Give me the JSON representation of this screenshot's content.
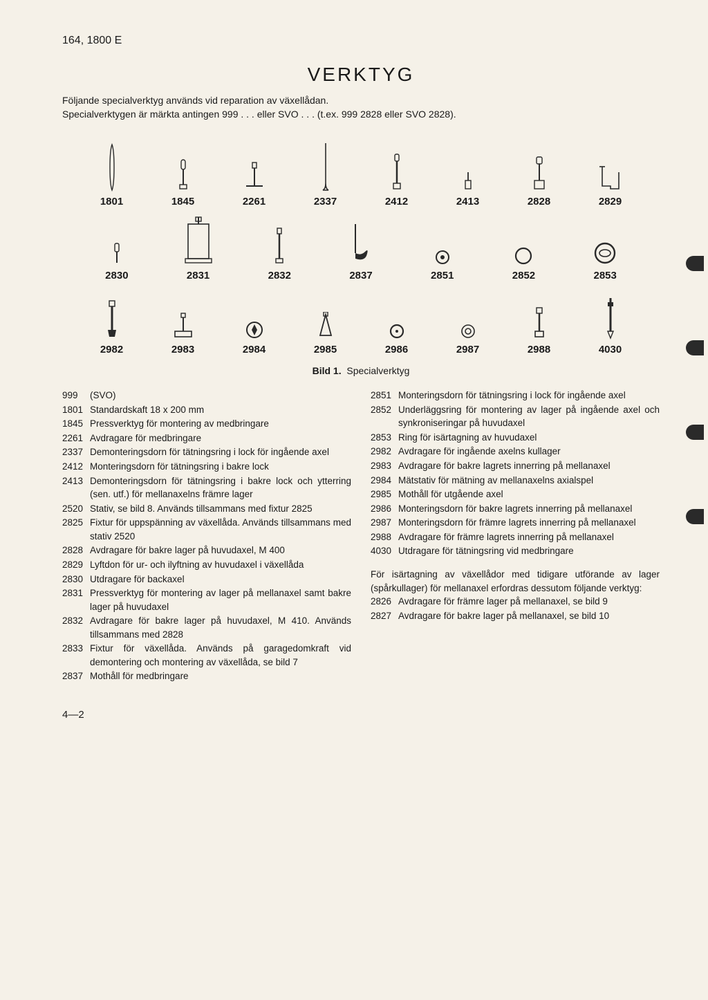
{
  "header": "164, 1800 E",
  "title": "VERKTYG",
  "intro_line1": "Följande specialverktyg används vid reparation av växellådan.",
  "intro_line2": "Specialverktygen är märkta antingen 999 . . . eller SVO . . . (t.ex. 999 2828 eller SVO 2828).",
  "caption_bold": "Bild 1.",
  "caption_text": "Specialverktyg",
  "tool_rows": [
    [
      "1801",
      "1845",
      "2261",
      "2337",
      "2412",
      "2413",
      "2828",
      "2829"
    ],
    [
      "2830",
      "2831",
      "2832",
      "2837",
      "2851",
      "2852",
      "2853"
    ],
    [
      "2982",
      "2983",
      "2984",
      "2985",
      "2986",
      "2987",
      "2988",
      "4030"
    ]
  ],
  "left_col": [
    {
      "num": "999",
      "desc": "(SVO)"
    },
    {
      "num": "1801",
      "desc": "Standardskaft 18 x 200 mm"
    },
    {
      "num": "1845",
      "desc": "Pressverktyg för montering av medbringare"
    },
    {
      "num": "2261",
      "desc": "Avdragare för medbringare"
    },
    {
      "num": "2337",
      "desc": "Demonteringsdorn för tätningsring i lock för ingående axel"
    },
    {
      "num": "2412",
      "desc": "Monteringsdorn för tätningsring i bakre lock"
    },
    {
      "num": "2413",
      "desc": "Demonteringsdorn för tätningsring i bakre lock och ytterring (sen. utf.) för mellanaxelns främre lager"
    },
    {
      "num": "2520",
      "desc": "Stativ, se bild 8. Används tillsammans med fixtur 2825"
    },
    {
      "num": "2825",
      "desc": "Fixtur för uppspänning av växellåda. Används tillsammans med stativ 2520"
    },
    {
      "num": "2828",
      "desc": "Avdragare för bakre lager på huvudaxel, M 400"
    },
    {
      "num": "2829",
      "desc": "Lyftdon för ur- och ilyftning av huvudaxel i växellåda"
    },
    {
      "num": "2830",
      "desc": "Utdragare för backaxel"
    },
    {
      "num": "2831",
      "desc": "Pressverktyg för montering av lager på mellanaxel samt bakre lager på huvudaxel"
    },
    {
      "num": "2832",
      "desc": "Avdragare för bakre lager på huvudaxel, M 410. Används tillsammans med 2828"
    },
    {
      "num": "2833",
      "desc": "Fixtur för växellåda. Används på garagedomkraft vid demontering och montering av växellåda, se bild 7"
    },
    {
      "num": "2837",
      "desc": "Mothåll för medbringare"
    }
  ],
  "right_col": [
    {
      "num": "2851",
      "desc": "Monteringsdorn för tätningsring i lock för ingående axel"
    },
    {
      "num": "2852",
      "desc": "Underläggsring för montering av lager på ingående axel och synkroniseringar på huvudaxel"
    },
    {
      "num": "2853",
      "desc": "Ring för isärtagning av huvudaxel"
    },
    {
      "num": "2982",
      "desc": "Avdragare för ingående axelns kullager"
    },
    {
      "num": "2983",
      "desc": "Avdragare för bakre lagrets innerring på mellanaxel"
    },
    {
      "num": "2984",
      "desc": "Mätstativ för mätning av mellanaxelns axialspel"
    },
    {
      "num": "2985",
      "desc": "Mothåll för utgående axel"
    },
    {
      "num": "2986",
      "desc": "Monteringsdorn för bakre lagrets innerring på mellanaxel"
    },
    {
      "num": "2987",
      "desc": "Monteringsdorn för främre lagrets innerring på mellanaxel"
    },
    {
      "num": "2988",
      "desc": "Avdragare för främre lagrets innerring på mellanaxel"
    },
    {
      "num": "4030",
      "desc": "Utdragare för tätningsring vid medbringare"
    }
  ],
  "extra_text": "För isärtagning av växellådor med tidigare utförande av lager (spårkullager) för mellanaxel erfordras dessutom följande verktyg:",
  "extra_items": [
    {
      "num": "2826",
      "desc": "Avdragare för främre lager på mellanaxel, se bild 9"
    },
    {
      "num": "2827",
      "desc": "Avdragare för bakre lager på mellanaxel, se bild 10"
    }
  ],
  "footer": "4—2",
  "colors": {
    "bg": "#f5f1e8",
    "text": "#1a1a1a",
    "icon_stroke": "#2a2a2a"
  }
}
